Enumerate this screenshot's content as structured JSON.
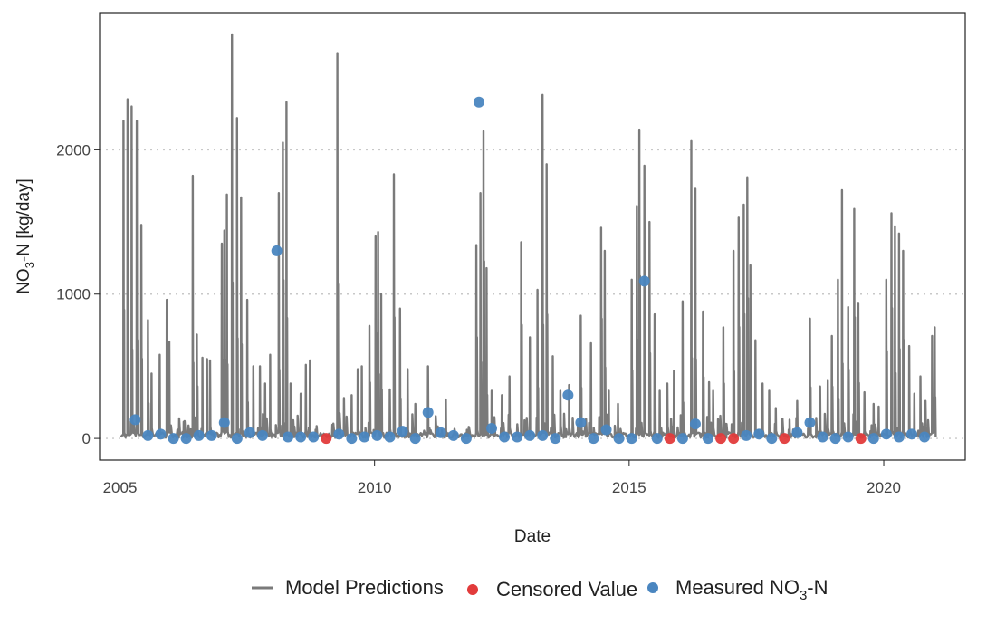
{
  "chart_data": {
    "type": "line",
    "title": "",
    "xlabel": "Date",
    "ylabel": "NO₃-N [kg/day]",
    "ylabel_parts": {
      "pre": "NO",
      "sub": "3",
      "post": "-N [kg/day]"
    },
    "xlim": [
      2004.6,
      2021.6
    ],
    "ylim": [
      -150,
      2950
    ],
    "x_ticks": [
      2005,
      2010,
      2015,
      2020
    ],
    "x_tick_labels": [
      "2005",
      "2010",
      "2015",
      "2020"
    ],
    "y_ticks": [
      0,
      1000,
      2000
    ],
    "y_tick_labels": [
      "0",
      "1000",
      "2000"
    ],
    "grid": "horizontal-dotted",
    "legend_position": "bottom",
    "colors": {
      "model": "#7a7a7a",
      "censored": "#e23b3b",
      "measured": "#4a86c0"
    },
    "legend": [
      {
        "key": "model",
        "label": "Model Predictions",
        "kind": "line"
      },
      {
        "key": "censored",
        "label": "Censored Value",
        "kind": "point"
      },
      {
        "key": "measured",
        "label": "Measured NO3-N",
        "label_parts": {
          "pre": "Measured NO",
          "sub": "3",
          "post": "-N"
        },
        "kind": "point"
      }
    ],
    "series": [
      {
        "key": "model",
        "name": "Model Predictions",
        "type": "line",
        "peaks": [
          [
            2005.07,
            2200
          ],
          [
            2005.15,
            2350
          ],
          [
            2005.23,
            2300
          ],
          [
            2005.33,
            2200
          ],
          [
            2005.42,
            1480
          ],
          [
            2005.55,
            820
          ],
          [
            2005.62,
            450
          ],
          [
            2005.78,
            580
          ],
          [
            2005.92,
            960
          ],
          [
            2005.97,
            670
          ],
          [
            2006.13,
            60
          ],
          [
            2006.27,
            120
          ],
          [
            2006.43,
            1820
          ],
          [
            2006.51,
            720
          ],
          [
            2006.62,
            560
          ],
          [
            2006.71,
            550
          ],
          [
            2006.77,
            540
          ],
          [
            2007.0,
            1350
          ],
          [
            2007.05,
            1440
          ],
          [
            2007.1,
            1690
          ],
          [
            2007.2,
            2800
          ],
          [
            2007.3,
            2220
          ],
          [
            2007.38,
            1670
          ],
          [
            2007.5,
            960
          ],
          [
            2007.62,
            500
          ],
          [
            2007.75,
            500
          ],
          [
            2007.85,
            380
          ],
          [
            2007.95,
            580
          ],
          [
            2008.12,
            1700
          ],
          [
            2008.2,
            2050
          ],
          [
            2008.27,
            2330
          ],
          [
            2008.35,
            380
          ],
          [
            2008.55,
            310
          ],
          [
            2008.65,
            510
          ],
          [
            2008.73,
            540
          ],
          [
            2009.27,
            2670
          ],
          [
            2009.4,
            280
          ],
          [
            2009.55,
            300
          ],
          [
            2009.67,
            480
          ],
          [
            2009.75,
            500
          ],
          [
            2009.9,
            780
          ],
          [
            2010.02,
            1400
          ],
          [
            2010.07,
            1430
          ],
          [
            2010.13,
            1000
          ],
          [
            2010.3,
            340
          ],
          [
            2010.38,
            1830
          ],
          [
            2010.5,
            900
          ],
          [
            2010.65,
            480
          ],
          [
            2010.8,
            240
          ],
          [
            2011.05,
            500
          ],
          [
            2011.4,
            270
          ],
          [
            2011.85,
            80
          ],
          [
            2012.0,
            1340
          ],
          [
            2012.08,
            1700
          ],
          [
            2012.14,
            2130
          ],
          [
            2012.2,
            1180
          ],
          [
            2012.3,
            330
          ],
          [
            2012.5,
            300
          ],
          [
            2012.65,
            430
          ],
          [
            2012.88,
            1360
          ],
          [
            2013.05,
            700
          ],
          [
            2013.2,
            1030
          ],
          [
            2013.3,
            2380
          ],
          [
            2013.38,
            1900
          ],
          [
            2013.5,
            570
          ],
          [
            2013.65,
            330
          ],
          [
            2013.82,
            370
          ],
          [
            2014.05,
            850
          ],
          [
            2014.25,
            660
          ],
          [
            2014.45,
            1460
          ],
          [
            2014.52,
            1300
          ],
          [
            2014.6,
            330
          ],
          [
            2014.78,
            240
          ],
          [
            2015.05,
            1100
          ],
          [
            2015.15,
            1610
          ],
          [
            2015.2,
            2140
          ],
          [
            2015.3,
            1890
          ],
          [
            2015.4,
            1500
          ],
          [
            2015.5,
            860
          ],
          [
            2015.6,
            330
          ],
          [
            2015.75,
            380
          ],
          [
            2015.88,
            470
          ],
          [
            2016.05,
            950
          ],
          [
            2016.22,
            2060
          ],
          [
            2016.3,
            1730
          ],
          [
            2016.45,
            880
          ],
          [
            2016.57,
            390
          ],
          [
            2016.65,
            330
          ],
          [
            2016.85,
            770
          ],
          [
            2017.05,
            1300
          ],
          [
            2017.15,
            1530
          ],
          [
            2017.25,
            1620
          ],
          [
            2017.32,
            1810
          ],
          [
            2017.38,
            1200
          ],
          [
            2017.48,
            680
          ],
          [
            2017.62,
            380
          ],
          [
            2017.75,
            330
          ],
          [
            2017.88,
            210
          ],
          [
            2018.15,
            130
          ],
          [
            2018.3,
            260
          ],
          [
            2018.55,
            830
          ],
          [
            2018.75,
            360
          ],
          [
            2018.9,
            400
          ],
          [
            2018.98,
            710
          ],
          [
            2019.1,
            1100
          ],
          [
            2019.18,
            1720
          ],
          [
            2019.3,
            910
          ],
          [
            2019.42,
            1590
          ],
          [
            2019.5,
            940
          ],
          [
            2019.62,
            320
          ],
          [
            2019.8,
            240
          ],
          [
            2019.9,
            220
          ],
          [
            2020.05,
            1100
          ],
          [
            2020.15,
            1560
          ],
          [
            2020.22,
            1470
          ],
          [
            2020.3,
            1420
          ],
          [
            2020.38,
            1300
          ],
          [
            2020.5,
            640
          ],
          [
            2020.6,
            310
          ],
          [
            2020.72,
            430
          ],
          [
            2020.82,
            260
          ],
          [
            2020.95,
            710
          ],
          [
            2021.0,
            770
          ]
        ]
      },
      {
        "key": "measured",
        "name": "Measured NO3-N",
        "type": "scatter",
        "points": [
          [
            2005.3,
            130
          ],
          [
            2005.55,
            20
          ],
          [
            2005.8,
            30
          ],
          [
            2006.05,
            0
          ],
          [
            2006.3,
            0
          ],
          [
            2006.55,
            20
          ],
          [
            2006.8,
            20
          ],
          [
            2007.05,
            110
          ],
          [
            2007.3,
            0
          ],
          [
            2007.55,
            40
          ],
          [
            2007.8,
            20
          ],
          [
            2008.08,
            1300
          ],
          [
            2008.3,
            10
          ],
          [
            2008.55,
            10
          ],
          [
            2008.8,
            10
          ],
          [
            2009.3,
            30
          ],
          [
            2009.55,
            0
          ],
          [
            2009.8,
            10
          ],
          [
            2010.05,
            20
          ],
          [
            2010.3,
            10
          ],
          [
            2010.55,
            50
          ],
          [
            2010.8,
            0
          ],
          [
            2011.05,
            180
          ],
          [
            2011.3,
            40
          ],
          [
            2011.55,
            20
          ],
          [
            2011.8,
            0
          ],
          [
            2012.05,
            2330
          ],
          [
            2012.3,
            70
          ],
          [
            2012.55,
            10
          ],
          [
            2012.8,
            10
          ],
          [
            2013.05,
            20
          ],
          [
            2013.3,
            20
          ],
          [
            2013.55,
            0
          ],
          [
            2013.8,
            300
          ],
          [
            2014.05,
            110
          ],
          [
            2014.3,
            0
          ],
          [
            2014.55,
            60
          ],
          [
            2014.8,
            0
          ],
          [
            2015.05,
            0
          ],
          [
            2015.3,
            1090
          ],
          [
            2015.55,
            0
          ],
          [
            2016.05,
            0
          ],
          [
            2016.3,
            100
          ],
          [
            2016.55,
            0
          ],
          [
            2017.3,
            20
          ],
          [
            2017.55,
            30
          ],
          [
            2017.8,
            0
          ],
          [
            2018.3,
            40
          ],
          [
            2018.55,
            110
          ],
          [
            2018.8,
            10
          ],
          [
            2019.05,
            0
          ],
          [
            2019.3,
            10
          ],
          [
            2019.8,
            0
          ],
          [
            2020.05,
            30
          ],
          [
            2020.3,
            10
          ],
          [
            2020.55,
            30
          ],
          [
            2020.8,
            10
          ]
        ]
      },
      {
        "key": "censored",
        "name": "Censored Value",
        "type": "scatter",
        "points": [
          [
            2009.05,
            0
          ],
          [
            2015.8,
            0
          ],
          [
            2016.8,
            0
          ],
          [
            2017.05,
            0
          ],
          [
            2018.05,
            0
          ],
          [
            2019.55,
            0
          ]
        ]
      }
    ]
  }
}
